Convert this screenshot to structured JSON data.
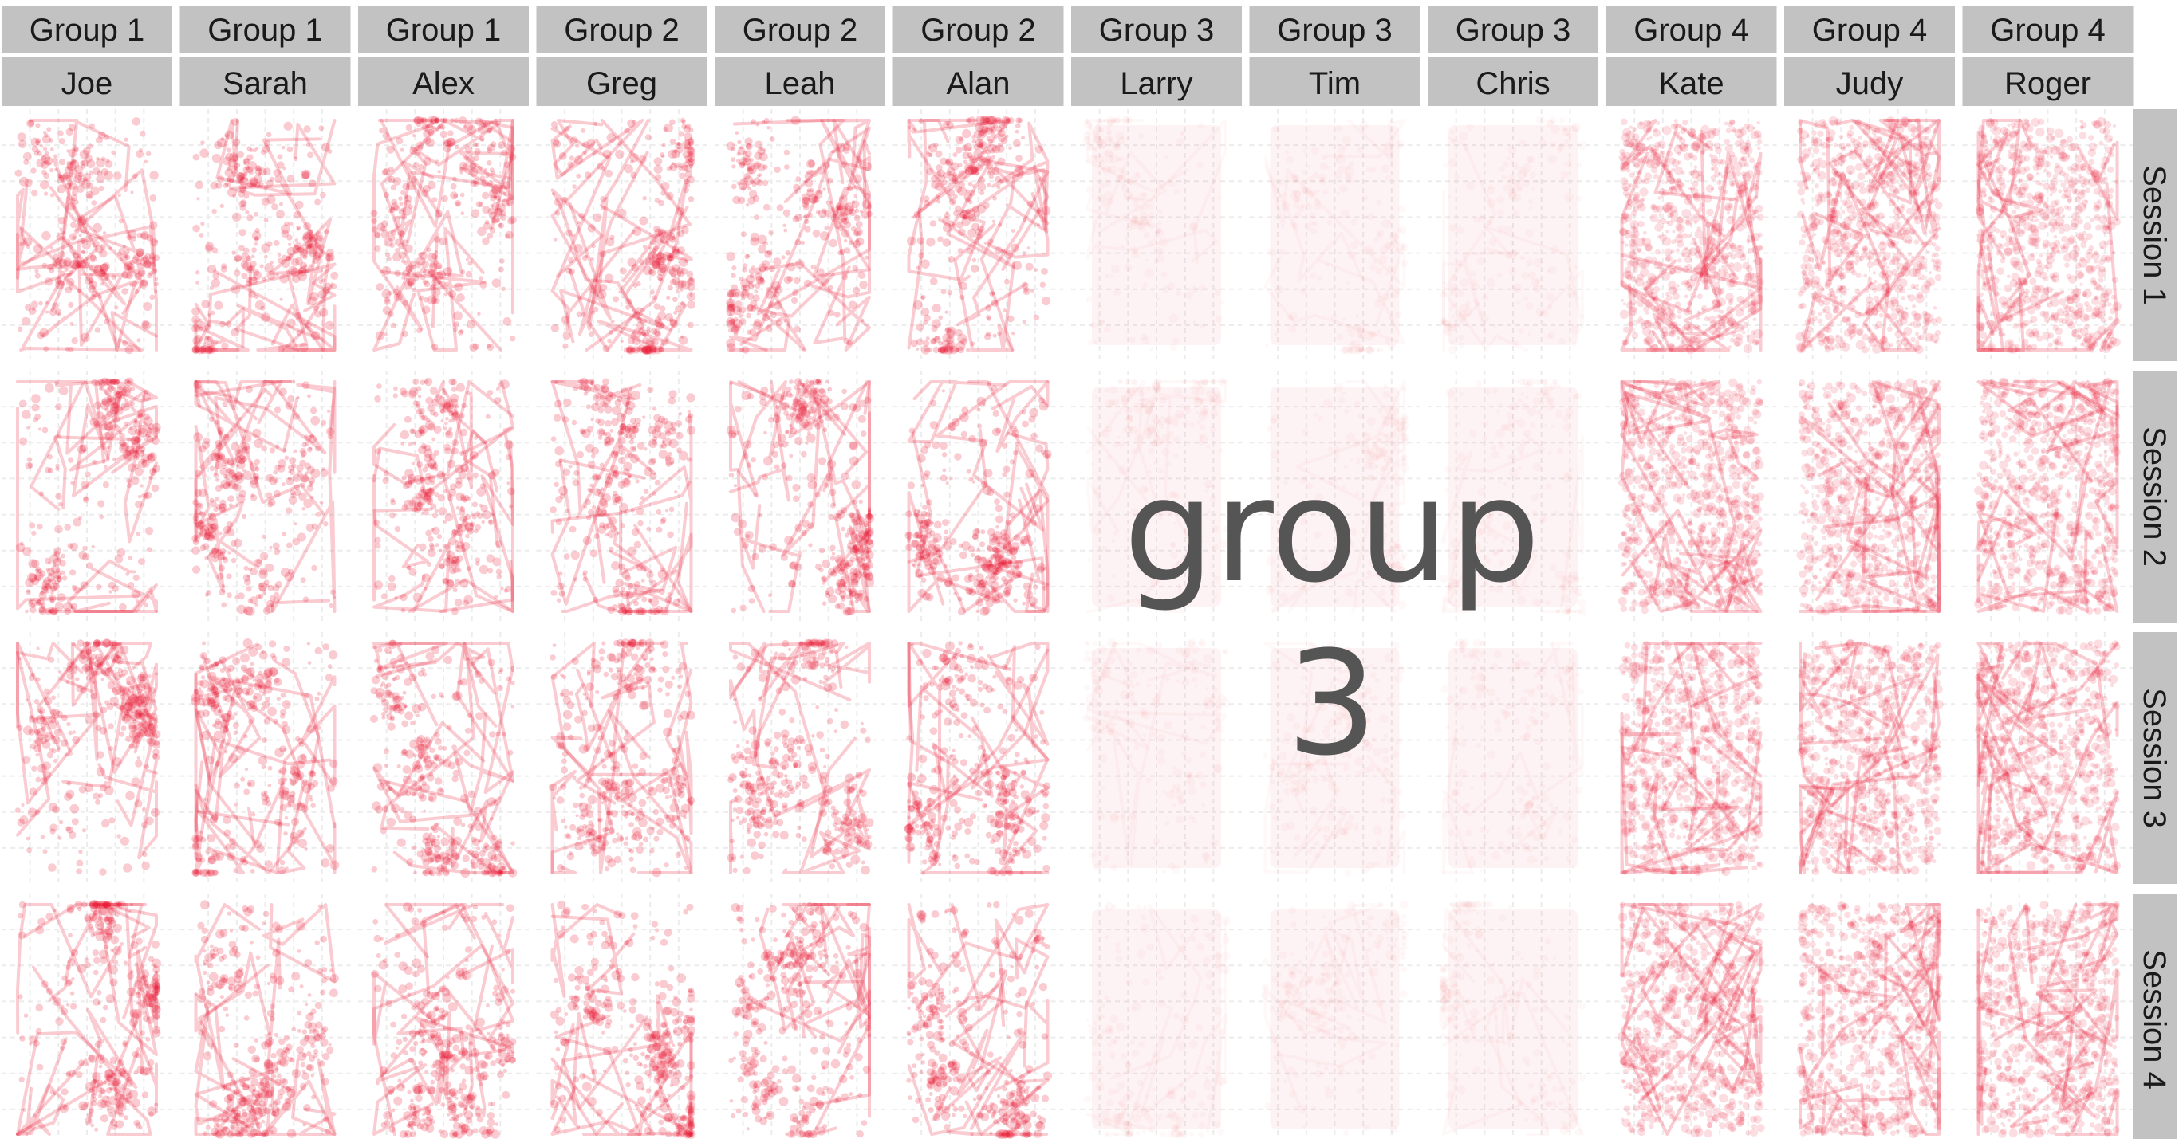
{
  "chart_data": {
    "type": "scatter",
    "description_facets": "facet grid; columns = participants, rows = sessions",
    "columns": [
      {
        "group": "Group 1",
        "name": "Joe"
      },
      {
        "group": "Group 1",
        "name": "Sarah"
      },
      {
        "group": "Group 1",
        "name": "Alex"
      },
      {
        "group": "Group 2",
        "name": "Greg"
      },
      {
        "group": "Group 2",
        "name": "Leah"
      },
      {
        "group": "Group 2",
        "name": "Alan"
      },
      {
        "group": "Group 3",
        "name": "Larry"
      },
      {
        "group": "Group 3",
        "name": "Tim"
      },
      {
        "group": "Group 3",
        "name": "Chris"
      },
      {
        "group": "Group 4",
        "name": "Kate"
      },
      {
        "group": "Group 4",
        "name": "Judy"
      },
      {
        "group": "Group 4",
        "name": "Roger"
      }
    ],
    "rows": [
      "Session 1",
      "Session 2",
      "Session 3",
      "Session 4"
    ],
    "highlight": {
      "group": "Group 3",
      "opacity": 0.1
    },
    "point_color": "#e8112d",
    "grid": true,
    "annotation": [
      "group",
      "3"
    ]
  },
  "colors": {
    "point": "#e8112d",
    "strip_bg": "#c2c2c2",
    "panel_bg": "#ffffff",
    "grid": "#ececec",
    "annotation": "#555555"
  }
}
